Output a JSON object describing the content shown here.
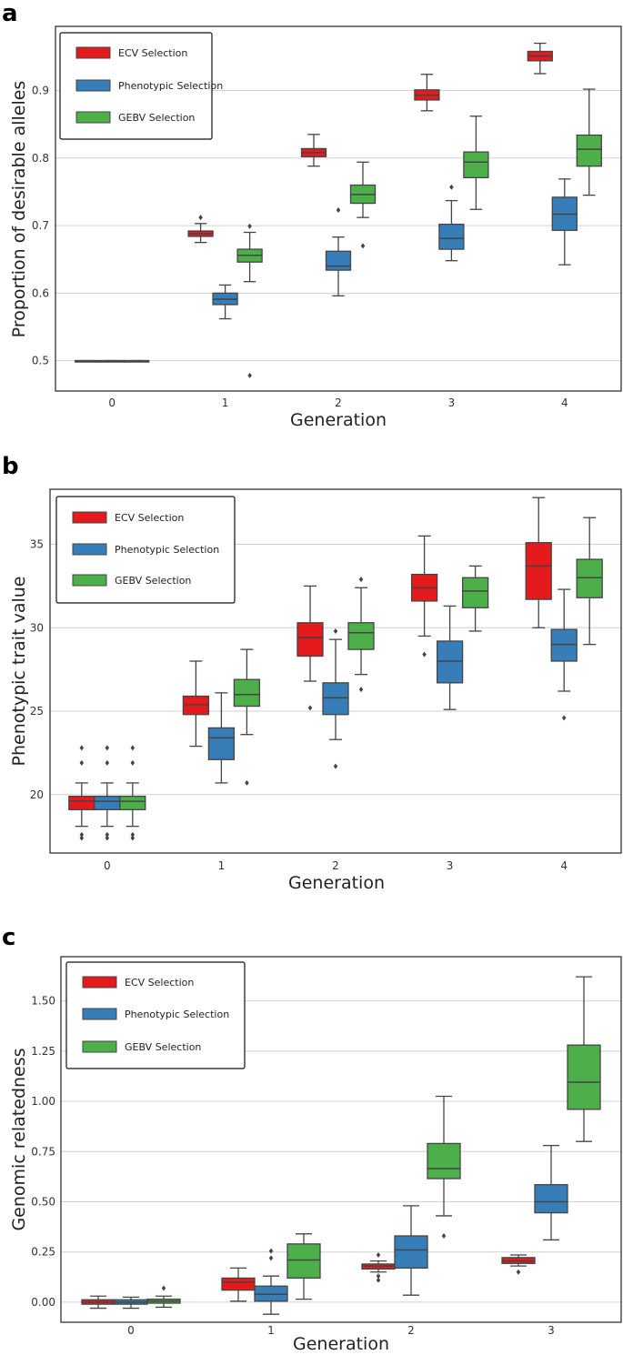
{
  "chart_data": [
    {
      "panel": "a",
      "type": "box",
      "xlabel": "Generation",
      "ylabel": "Proportion of desirable alleles",
      "categories": [
        "0",
        "1",
        "2",
        "3",
        "4"
      ],
      "ylim": [
        0.455,
        0.995
      ],
      "yticks": [
        0.5,
        0.6,
        0.7,
        0.8,
        0.9
      ],
      "ytick_labels": [
        "0.5",
        "0.6",
        "0.7",
        "0.8",
        "0.9"
      ],
      "legend": [
        "ECV Selection",
        "Phenotypic Selection",
        "GEBV Selection"
      ],
      "colors": [
        "#e41a1c",
        "#377eb8",
        "#4daf4a"
      ],
      "series": [
        {
          "name": "ECV Selection",
          "boxes": [
            {
              "wl": 0.5,
              "q1": 0.5,
              "med": 0.5,
              "q3": 0.5,
              "wh": 0.5,
              "out": []
            },
            {
              "wl": 0.675,
              "q1": 0.684,
              "med": 0.688,
              "q3": 0.692,
              "wh": 0.703,
              "out": [
                0.712
              ]
            },
            {
              "wl": 0.788,
              "q1": 0.802,
              "med": 0.808,
              "q3": 0.814,
              "wh": 0.835,
              "out": []
            },
            {
              "wl": 0.87,
              "q1": 0.886,
              "med": 0.893,
              "q3": 0.901,
              "wh": 0.924,
              "out": []
            },
            {
              "wl": 0.925,
              "q1": 0.944,
              "med": 0.951,
              "q3": 0.958,
              "wh": 0.97,
              "out": []
            }
          ]
        },
        {
          "name": "Phenotypic Selection",
          "boxes": [
            {
              "wl": 0.5,
              "q1": 0.5,
              "med": 0.5,
              "q3": 0.5,
              "wh": 0.5,
              "out": []
            },
            {
              "wl": 0.562,
              "q1": 0.583,
              "med": 0.591,
              "q3": 0.6,
              "wh": 0.612,
              "out": []
            },
            {
              "wl": 0.596,
              "q1": 0.634,
              "med": 0.64,
              "q3": 0.662,
              "wh": 0.683,
              "out": [
                0.723
              ]
            },
            {
              "wl": 0.648,
              "q1": 0.665,
              "med": 0.681,
              "q3": 0.702,
              "wh": 0.737,
              "out": [
                0.757
              ]
            },
            {
              "wl": 0.642,
              "q1": 0.693,
              "med": 0.717,
              "q3": 0.742,
              "wh": 0.769,
              "out": []
            }
          ]
        },
        {
          "name": "GEBV Selection",
          "boxes": [
            {
              "wl": 0.5,
              "q1": 0.5,
              "med": 0.5,
              "q3": 0.5,
              "wh": 0.5,
              "out": []
            },
            {
              "wl": 0.617,
              "q1": 0.646,
              "med": 0.656,
              "q3": 0.665,
              "wh": 0.69,
              "out": [
                0.478,
                0.699
              ]
            },
            {
              "wl": 0.712,
              "q1": 0.733,
              "med": 0.746,
              "q3": 0.76,
              "wh": 0.794,
              "out": [
                0.67
              ]
            },
            {
              "wl": 0.724,
              "q1": 0.771,
              "med": 0.794,
              "q3": 0.809,
              "wh": 0.862,
              "out": []
            },
            {
              "wl": 0.745,
              "q1": 0.788,
              "med": 0.813,
              "q3": 0.834,
              "wh": 0.902,
              "out": []
            }
          ]
        }
      ]
    },
    {
      "panel": "b",
      "type": "box",
      "xlabel": "Generation",
      "ylabel": "Phenotypic trait value",
      "categories": [
        "0",
        "1",
        "2",
        "3",
        "4"
      ],
      "ylim": [
        16.5,
        38.3
      ],
      "yticks": [
        20,
        25,
        30,
        35
      ],
      "ytick_labels": [
        "20",
        "25",
        "30",
        "35"
      ],
      "legend": [
        "ECV Selection",
        "Phenotypic Selection",
        "GEBV Selection"
      ],
      "colors": [
        "#e41a1c",
        "#377eb8",
        "#4daf4a"
      ],
      "series": [
        {
          "name": "ECV Selection",
          "boxes": [
            {
              "wl": 18.1,
              "q1": 19.1,
              "med": 19.6,
              "q3": 19.9,
              "wh": 20.7,
              "out": [
                17.4,
                17.6,
                21.9,
                22.8
              ]
            },
            {
              "wl": 22.9,
              "q1": 24.8,
              "med": 25.4,
              "q3": 25.9,
              "wh": 28.0,
              "out": []
            },
            {
              "wl": 26.8,
              "q1": 28.3,
              "med": 29.4,
              "q3": 30.3,
              "wh": 32.5,
              "out": [
                25.2
              ]
            },
            {
              "wl": 29.5,
              "q1": 31.6,
              "med": 32.4,
              "q3": 33.2,
              "wh": 35.5,
              "out": [
                28.4
              ]
            },
            {
              "wl": 30.0,
              "q1": 31.7,
              "med": 33.7,
              "q3": 35.1,
              "wh": 37.8,
              "out": []
            }
          ]
        },
        {
          "name": "Phenotypic Selection",
          "boxes": [
            {
              "wl": 18.1,
              "q1": 19.1,
              "med": 19.6,
              "q3": 19.9,
              "wh": 20.7,
              "out": [
                17.4,
                17.6,
                21.9,
                22.8
              ]
            },
            {
              "wl": 20.7,
              "q1": 22.1,
              "med": 23.4,
              "q3": 24.0,
              "wh": 26.1,
              "out": []
            },
            {
              "wl": 23.3,
              "q1": 24.8,
              "med": 25.8,
              "q3": 26.7,
              "wh": 29.3,
              "out": [
                21.7,
                29.8
              ]
            },
            {
              "wl": 25.1,
              "q1": 26.7,
              "med": 28.0,
              "q3": 29.2,
              "wh": 31.3,
              "out": []
            },
            {
              "wl": 26.2,
              "q1": 28.0,
              "med": 29.0,
              "q3": 29.9,
              "wh": 32.3,
              "out": [
                24.6
              ]
            }
          ]
        },
        {
          "name": "GEBV Selection",
          "boxes": [
            {
              "wl": 18.1,
              "q1": 19.1,
              "med": 19.6,
              "q3": 19.9,
              "wh": 20.7,
              "out": [
                17.4,
                17.6,
                21.9,
                22.8
              ]
            },
            {
              "wl": 23.6,
              "q1": 25.3,
              "med": 26.0,
              "q3": 26.9,
              "wh": 28.7,
              "out": [
                20.7
              ]
            },
            {
              "wl": 27.2,
              "q1": 28.7,
              "med": 29.7,
              "q3": 30.3,
              "wh": 32.4,
              "out": [
                26.3,
                32.9
              ]
            },
            {
              "wl": 29.8,
              "q1": 31.2,
              "med": 32.2,
              "q3": 33.0,
              "wh": 33.7,
              "out": []
            },
            {
              "wl": 29.0,
              "q1": 31.8,
              "med": 33.0,
              "q3": 34.1,
              "wh": 36.6,
              "out": []
            }
          ]
        }
      ]
    },
    {
      "panel": "c",
      "type": "box",
      "xlabel": "Generation",
      "ylabel": "Genomic relatedness",
      "categories": [
        "0",
        "1",
        "2",
        "3"
      ],
      "ylim": [
        -0.1,
        1.72
      ],
      "yticks": [
        0.0,
        0.25,
        0.5,
        0.75,
        1.0,
        1.25,
        1.5
      ],
      "ytick_labels": [
        "0.00",
        "0.25",
        "0.50",
        "0.75",
        "1.00",
        "1.25",
        "1.50"
      ],
      "legend": [
        "ECV Selection",
        "Phenotypic Selection",
        "GEBV Selection"
      ],
      "colors": [
        "#e41a1c",
        "#377eb8",
        "#4daf4a"
      ],
      "series": [
        {
          "name": "ECV Selection",
          "boxes": [
            {
              "wl": -0.03,
              "q1": -0.01,
              "med": 0.0,
              "q3": 0.012,
              "wh": 0.03,
              "out": []
            },
            {
              "wl": 0.005,
              "q1": 0.06,
              "med": 0.1,
              "q3": 0.12,
              "wh": 0.17,
              "out": []
            },
            {
              "wl": 0.15,
              "q1": 0.165,
              "med": 0.18,
              "q3": 0.19,
              "wh": 0.205,
              "out": [
                0.11,
                0.13,
                0.235
              ]
            },
            {
              "wl": 0.18,
              "q1": 0.193,
              "med": 0.205,
              "q3": 0.222,
              "wh": 0.235,
              "out": [
                0.15
              ]
            }
          ]
        },
        {
          "name": "Phenotypic Selection",
          "boxes": [
            {
              "wl": -0.03,
              "q1": -0.01,
              "med": 0.0,
              "q3": 0.012,
              "wh": 0.025,
              "out": []
            },
            {
              "wl": -0.06,
              "q1": 0.005,
              "med": 0.04,
              "q3": 0.08,
              "wh": 0.13,
              "out": [
                0.22,
                0.255
              ]
            },
            {
              "wl": 0.035,
              "q1": 0.17,
              "med": 0.26,
              "q3": 0.33,
              "wh": 0.48,
              "out": []
            },
            {
              "wl": 0.31,
              "q1": 0.445,
              "med": 0.5,
              "q3": 0.585,
              "wh": 0.78,
              "out": []
            }
          ]
        },
        {
          "name": "GEBV Selection",
          "boxes": [
            {
              "wl": -0.025,
              "q1": -0.005,
              "med": 0.005,
              "q3": 0.015,
              "wh": 0.03,
              "out": [
                0.07
              ]
            },
            {
              "wl": 0.015,
              "q1": 0.12,
              "med": 0.21,
              "q3": 0.29,
              "wh": 0.34,
              "out": []
            },
            {
              "wl": 0.43,
              "q1": 0.615,
              "med": 0.665,
              "q3": 0.79,
              "wh": 1.025,
              "out": [
                0.33
              ]
            },
            {
              "wl": 0.8,
              "q1": 0.96,
              "med": 1.095,
              "q3": 1.28,
              "wh": 1.62,
              "out": []
            }
          ]
        }
      ]
    }
  ]
}
